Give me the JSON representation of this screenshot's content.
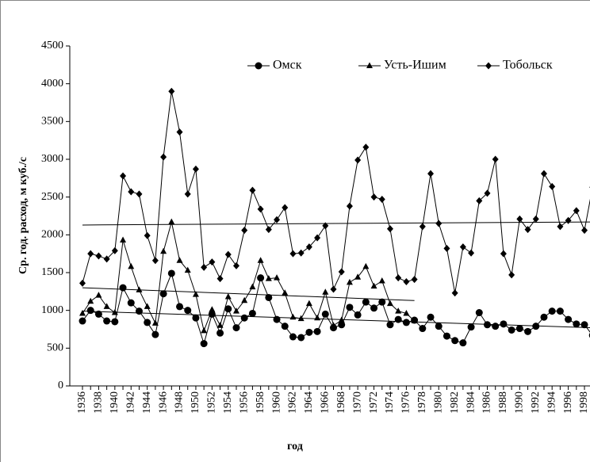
{
  "chart_data": {
    "type": "line",
    "y_label": "Ср. год. расход, м куб./с",
    "x_label": "год",
    "categories": [
      "1936",
      null,
      "1938",
      null,
      "1940",
      null,
      "1942",
      null,
      "1944",
      null,
      "1946",
      null,
      "1948",
      null,
      "1950",
      null,
      "1952",
      null,
      "1954",
      null,
      "1956",
      null,
      "1958",
      null,
      "1960",
      null,
      "1962",
      null,
      "1964",
      null,
      "1966",
      null,
      "1968",
      null,
      "1970",
      null,
      "1972",
      null,
      "1974",
      null,
      "1976",
      null,
      "1978",
      null,
      "1980",
      null,
      "1982",
      null,
      "1984",
      null,
      "1986",
      null,
      "1988",
      null,
      "1990",
      null,
      "1992",
      null,
      "1994",
      null,
      "1996",
      null,
      "1998",
      null
    ],
    "series": [
      {
        "name": "Омск",
        "marker": "circle",
        "color": "#000000",
        "trend": [
          990,
          770
        ],
        "values": [
          860,
          1000,
          950,
          860,
          850,
          1300,
          1100,
          990,
          840,
          680,
          1220,
          1490,
          1050,
          1000,
          900,
          560,
          950,
          700,
          1020,
          770,
          900,
          960,
          1430,
          1170,
          880,
          790,
          650,
          640,
          710,
          720,
          950,
          770,
          810,
          1040,
          940,
          1110,
          1030,
          1110,
          810,
          880,
          840,
          870,
          760,
          910,
          790,
          660,
          600,
          570,
          780,
          970,
          810,
          790,
          820,
          740,
          760,
          720,
          790,
          910,
          990,
          990,
          880,
          820,
          810,
          670
        ]
      },
      {
        "name": "Усть-Ишим",
        "marker": "triangle",
        "color": "#000000",
        "trend": [
          1300,
          1130
        ],
        "values": [
          960,
          1120,
          1200,
          1050,
          970,
          1930,
          1580,
          1270,
          1050,
          830,
          1780,
          2170,
          1660,
          1530,
          1210,
          730,
          1010,
          800,
          1180,
          990,
          1130,
          1310,
          1660,
          1420,
          1430,
          1230,
          910,
          890,
          1090,
          900,
          1240,
          800,
          870,
          1370,
          1440,
          1580,
          1320,
          1390,
          1090,
          990,
          960,
          860,
          null,
          null,
          null,
          null,
          null,
          null,
          null,
          null,
          null,
          null,
          null,
          null,
          null,
          null,
          null,
          null,
          null,
          null,
          null,
          null,
          null,
          null
        ]
      },
      {
        "name": "Тобольск",
        "marker": "diamond",
        "color": "#000000",
        "trend": [
          2130,
          2170
        ],
        "values": [
          1360,
          1750,
          1720,
          1680,
          1790,
          2780,
          2570,
          2540,
          1990,
          1660,
          3030,
          3900,
          3360,
          2540,
          2870,
          1570,
          1640,
          1420,
          1740,
          1590,
          2060,
          2590,
          2340,
          2070,
          2200,
          2360,
          1750,
          1760,
          1840,
          1960,
          2120,
          1280,
          1510,
          2380,
          2990,
          3160,
          2500,
          2470,
          2080,
          1430,
          1380,
          1410,
          2110,
          2810,
          2150,
          1820,
          1230,
          1840,
          1760,
          2450,
          2550,
          3000,
          1750,
          1470,
          2210,
          2070,
          2210,
          2810,
          2640,
          2110,
          2190,
          2320,
          2060,
          2630
        ]
      }
    ],
    "ylim": [
      0,
      4500
    ],
    "yticks": [
      0,
      500,
      1000,
      1500,
      2000,
      2500,
      3000,
      3500,
      4000,
      4500
    ],
    "legend": "top"
  }
}
